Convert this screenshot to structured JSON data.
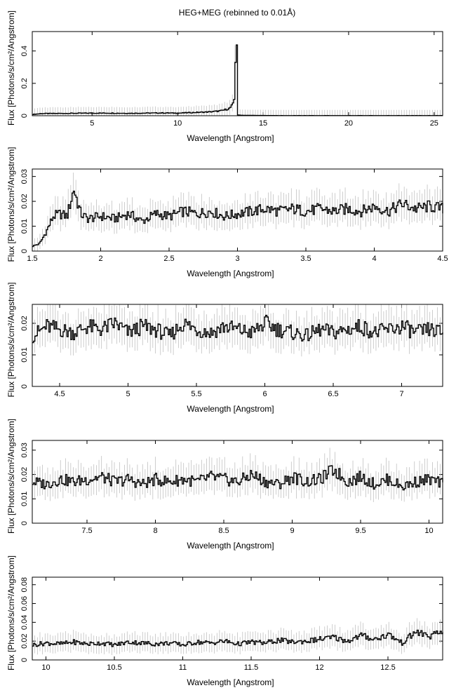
{
  "figure": {
    "title": "HEG+MEG (rebinned to 0.01Å)"
  },
  "chart_data": [
    {
      "type": "line",
      "xlabel": "Wavelength [Angstrom]",
      "ylabel": "Flux [Photons/s/cm²/Angstrom]",
      "xlim": [
        1.5,
        25.5
      ],
      "ylim": [
        0,
        0.52
      ],
      "xticks": [
        5,
        10,
        15,
        20,
        25
      ],
      "xtick_labels": [
        "5",
        "10",
        "15",
        "20",
        "25"
      ],
      "yticks": [
        0,
        0.2,
        0.4
      ],
      "ytick_labels": [
        "0",
        "0.2",
        "0.4"
      ],
      "series": [
        {
          "x": [
            1.5,
            2,
            3,
            4,
            5,
            6,
            7,
            8,
            9,
            10,
            10.5,
            11,
            11.5,
            12,
            12.5,
            13,
            13.2,
            13.3,
            13.38,
            13.42,
            13.48,
            14,
            16,
            18,
            20,
            22,
            24,
            25.5
          ],
          "y": [
            0.008,
            0.013,
            0.014,
            0.015,
            0.016,
            0.016,
            0.015,
            0.016,
            0.017,
            0.016,
            0.018,
            0.02,
            0.022,
            0.025,
            0.03,
            0.045,
            0.07,
            0.11,
            0.5,
            0.5,
            0.004,
            0.002,
            0.001,
            0.001,
            0.001,
            0.001,
            0.001,
            0.001
          ]
        }
      ]
    },
    {
      "type": "line",
      "xlabel": "Wavelength [Angstrom]",
      "ylabel": "Flux [Photons/s/cm²/Angstrom]",
      "xlim": [
        1.5,
        4.5
      ],
      "ylim": [
        0,
        0.033
      ],
      "xticks": [
        1.5,
        2,
        2.5,
        3,
        3.5,
        4,
        4.5
      ],
      "xtick_labels": [
        "1.5",
        "2",
        "2.5",
        "3",
        "3.5",
        "4",
        "4.5"
      ],
      "yticks": [
        0,
        0.01,
        0.02,
        0.03
      ],
      "ytick_labels": [
        "0",
        "0.01",
        "0.02",
        "0.03"
      ],
      "series": [
        {
          "x": [
            1.5,
            1.55,
            1.6,
            1.65,
            1.7,
            1.75,
            1.8,
            1.85,
            1.9,
            2,
            2.1,
            2.2,
            2.3,
            2.4,
            2.5,
            2.6,
            2.7,
            2.8,
            2.9,
            3,
            3.1,
            3.2,
            3.3,
            3.4,
            3.5,
            3.6,
            3.7,
            3.8,
            3.9,
            4,
            4.1,
            4.2,
            4.3,
            4.4,
            4.5
          ],
          "y": [
            0.002,
            0.003,
            0.008,
            0.014,
            0.015,
            0.014,
            0.025,
            0.015,
            0.013,
            0.014,
            0.013,
            0.015,
            0.012,
            0.015,
            0.014,
            0.016,
            0.015,
            0.016,
            0.014,
            0.015,
            0.016,
            0.017,
            0.016,
            0.017,
            0.016,
            0.017,
            0.016,
            0.017,
            0.016,
            0.018,
            0.016,
            0.019,
            0.017,
            0.018,
            0.017
          ]
        }
      ]
    },
    {
      "type": "line",
      "xlabel": "Wavelength [Angstrom]",
      "ylabel": "Flux [Photons/s/cm²/Angstrom]",
      "xlim": [
        4.3,
        7.3
      ],
      "ylim": [
        0,
        0.026
      ],
      "xticks": [
        4.5,
        5,
        5.5,
        6,
        6.5,
        7
      ],
      "xtick_labels": [
        "4.5",
        "5",
        "5.5",
        "6",
        "6.5",
        "7"
      ],
      "yticks": [
        0,
        0.01,
        0.02
      ],
      "ytick_labels": [
        "0",
        "0.01",
        "0.02"
      ],
      "series": [
        {
          "x": [
            4.3,
            4.4,
            4.5,
            4.6,
            4.7,
            4.8,
            4.9,
            5,
            5.1,
            5.2,
            5.3,
            5.4,
            5.5,
            5.6,
            5.7,
            5.8,
            5.9,
            6,
            6.1,
            6.2,
            6.3,
            6.4,
            6.5,
            6.6,
            6.7,
            6.8,
            6.9,
            7,
            7.1,
            7.2,
            7.3
          ],
          "y": [
            0.016,
            0.019,
            0.018,
            0.017,
            0.019,
            0.018,
            0.02,
            0.017,
            0.019,
            0.018,
            0.016,
            0.02,
            0.018,
            0.017,
            0.019,
            0.018,
            0.017,
            0.02,
            0.018,
            0.017,
            0.016,
            0.018,
            0.017,
            0.018,
            0.019,
            0.017,
            0.018,
            0.019,
            0.017,
            0.018,
            0.017
          ]
        }
      ]
    },
    {
      "type": "line",
      "xlabel": "Wavelength [Angstrom]",
      "ylabel": "Flux [Photons/s/cm²/Angstrom]",
      "xlim": [
        7.1,
        10.1
      ],
      "ylim": [
        0,
        0.034
      ],
      "xticks": [
        7.5,
        8,
        8.5,
        9,
        9.5,
        10
      ],
      "xtick_labels": [
        "7.5",
        "8",
        "8.5",
        "9",
        "9.5",
        "10"
      ],
      "yticks": [
        0,
        0.01,
        0.02,
        0.03
      ],
      "ytick_labels": [
        "0",
        "0.01",
        "0.02",
        "0.03"
      ],
      "series": [
        {
          "x": [
            7.1,
            7.2,
            7.3,
            7.4,
            7.5,
            7.6,
            7.7,
            7.8,
            7.9,
            8,
            8.1,
            8.2,
            8.3,
            8.4,
            8.5,
            8.6,
            8.7,
            8.8,
            8.9,
            9,
            9.1,
            9.2,
            9.3,
            9.4,
            9.5,
            9.6,
            9.7,
            9.8,
            9.9,
            10,
            10.1
          ],
          "y": [
            0.017,
            0.016,
            0.018,
            0.017,
            0.018,
            0.019,
            0.017,
            0.018,
            0.016,
            0.018,
            0.017,
            0.018,
            0.017,
            0.019,
            0.018,
            0.017,
            0.02,
            0.017,
            0.016,
            0.019,
            0.017,
            0.018,
            0.022,
            0.017,
            0.019,
            0.016,
            0.018,
            0.015,
            0.017,
            0.018,
            0.016
          ]
        }
      ]
    },
    {
      "type": "line",
      "xlabel": "Wavelength [Angstrom]",
      "ylabel": "Flux [Photons/s/cm²/Angstrom]",
      "xlim": [
        9.9,
        12.9
      ],
      "ylim": [
        0,
        0.088
      ],
      "xticks": [
        10,
        10.5,
        11,
        11.5,
        12,
        12.5
      ],
      "xtick_labels": [
        "10",
        "10.5",
        "11",
        "11.5",
        "12",
        "12.5"
      ],
      "yticks": [
        0,
        0.02,
        0.04,
        0.06,
        0.08
      ],
      "ytick_labels": [
        "0",
        "0.02",
        "0.04",
        "0.06",
        "0.08"
      ],
      "series": [
        {
          "x": [
            9.9,
            10,
            10.1,
            10.2,
            10.3,
            10.4,
            10.5,
            10.6,
            10.7,
            10.8,
            10.9,
            11,
            11.1,
            11.2,
            11.3,
            11.4,
            11.5,
            11.6,
            11.7,
            11.8,
            11.9,
            12,
            12.1,
            12.2,
            12.3,
            12.4,
            12.5,
            12.6,
            12.7,
            12.8,
            12.9
          ],
          "y": [
            0.016,
            0.018,
            0.017,
            0.019,
            0.017,
            0.018,
            0.016,
            0.019,
            0.018,
            0.017,
            0.018,
            0.016,
            0.019,
            0.018,
            0.02,
            0.017,
            0.019,
            0.018,
            0.021,
            0.019,
            0.02,
            0.022,
            0.024,
            0.02,
            0.026,
            0.022,
            0.027,
            0.018,
            0.03,
            0.025,
            0.03
          ]
        }
      ]
    }
  ]
}
